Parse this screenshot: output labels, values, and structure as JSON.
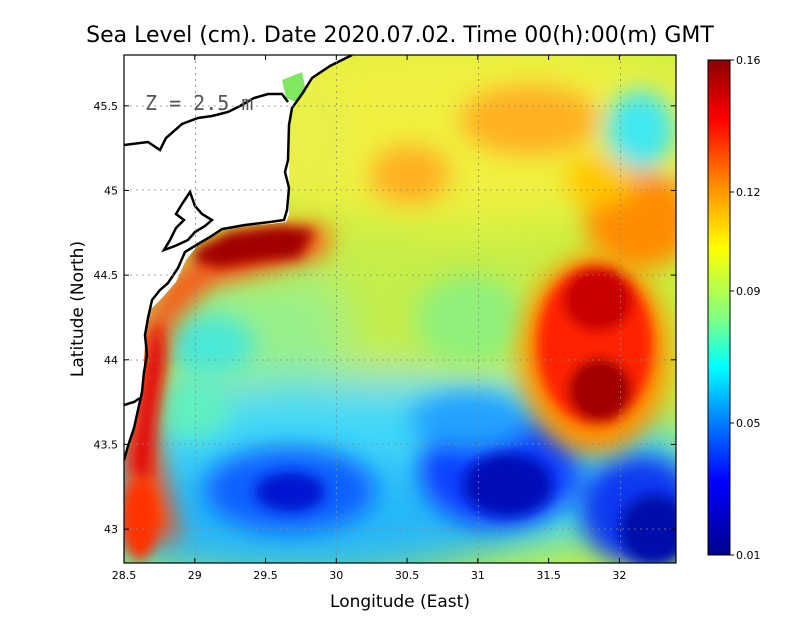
{
  "title": "Sea Level (cm). Date 2020.07.02. Time 00(h):00(m) GMT",
  "depth_label": "Z = 2.5 m",
  "xlabel": "Longitude (East)",
  "ylabel": "Latitude (North)",
  "chart_data": {
    "type": "heatmap",
    "title": "Sea Level (cm). Date 2020.07.02. Time 00(h):00(m) GMT",
    "xlabel": "Longitude (East)",
    "ylabel": "Latitude (North)",
    "xlim": [
      28.5,
      32.4
    ],
    "ylim": [
      42.8,
      45.8
    ],
    "x_ticks": [
      "28.5",
      "29",
      "29.5",
      "30",
      "30.5",
      "31",
      "31.5",
      "32"
    ],
    "x_tick_values": [
      28.5,
      29,
      29.5,
      30,
      30.5,
      31,
      31.5,
      32
    ],
    "y_ticks": [
      "43",
      "43.5",
      "44",
      "44.5",
      "45",
      "45.5"
    ],
    "y_tick_values": [
      43,
      43.5,
      44,
      44.5,
      45,
      45.5
    ],
    "grid": true,
    "colorbar": {
      "min": 0.01,
      "max": 0.16,
      "tick_labels": [
        "0.01",
        "0.05",
        "0.09",
        "0.12",
        "0.16"
      ],
      "tick_values": [
        0.01,
        0.05,
        0.09,
        0.12,
        0.16
      ],
      "colors": [
        "#00008c",
        "#0000ff",
        "#0080ff",
        "#00ffff",
        "#80ff80",
        "#ffff00",
        "#ff8000",
        "#ff0000",
        "#8c0000"
      ]
    },
    "features": [
      {
        "name": "coastal maximum",
        "lon": 29.45,
        "lat": 44.7,
        "value": 0.155
      },
      {
        "name": "eastern eddy maximum",
        "lon": 31.8,
        "lat": 43.85,
        "value": 0.155
      },
      {
        "name": "southern minimum",
        "lon": 31.1,
        "lat": 43.3,
        "value": 0.03
      },
      {
        "name": "southwest minimum",
        "lon": 29.65,
        "lat": 43.2,
        "value": 0.04
      },
      {
        "name": "southeast minimum",
        "lon": 32.3,
        "lat": 43.0,
        "value": 0.025
      }
    ]
  }
}
